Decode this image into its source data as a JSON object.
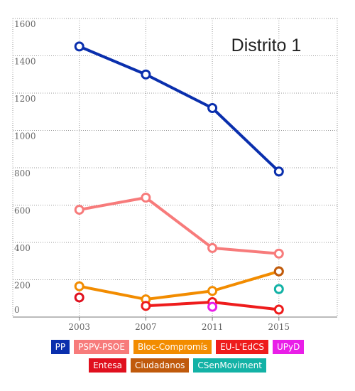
{
  "chart_data": {
    "type": "line",
    "title": "Distrito 1",
    "categories": [
      "2003",
      "2007",
      "2011",
      "2015"
    ],
    "ylim": [
      0,
      1600
    ],
    "yticks": [
      0,
      200,
      400,
      600,
      800,
      1000,
      1200,
      1400,
      1600
    ],
    "grid": true,
    "series": [
      {
        "name": "PP",
        "color": "#0a2fad",
        "values": [
          1450,
          1300,
          1120,
          780
        ]
      },
      {
        "name": "PSPV-PSOE",
        "color": "#f77b7b",
        "values": [
          575,
          640,
          370,
          340
        ]
      },
      {
        "name": "Bloc-Compromís",
        "color": "#f28c00",
        "values": [
          165,
          95,
          140,
          245
        ]
      },
      {
        "name": "EU-L'EdCS",
        "color": "#ee1c1c",
        "values": [
          null,
          60,
          80,
          40
        ]
      },
      {
        "name": "UPyD",
        "color": "#e91ee8",
        "values": [
          null,
          null,
          55,
          null
        ]
      },
      {
        "name": "Entesa",
        "color": "#e0101e",
        "values": [
          105,
          null,
          null,
          null
        ]
      },
      {
        "name": "Ciudadanos",
        "color": "#c05a0c",
        "values": [
          null,
          null,
          null,
          245
        ]
      },
      {
        "name": "CSenMoviment",
        "color": "#13b2a6",
        "values": [
          null,
          null,
          null,
          150
        ]
      }
    ]
  }
}
